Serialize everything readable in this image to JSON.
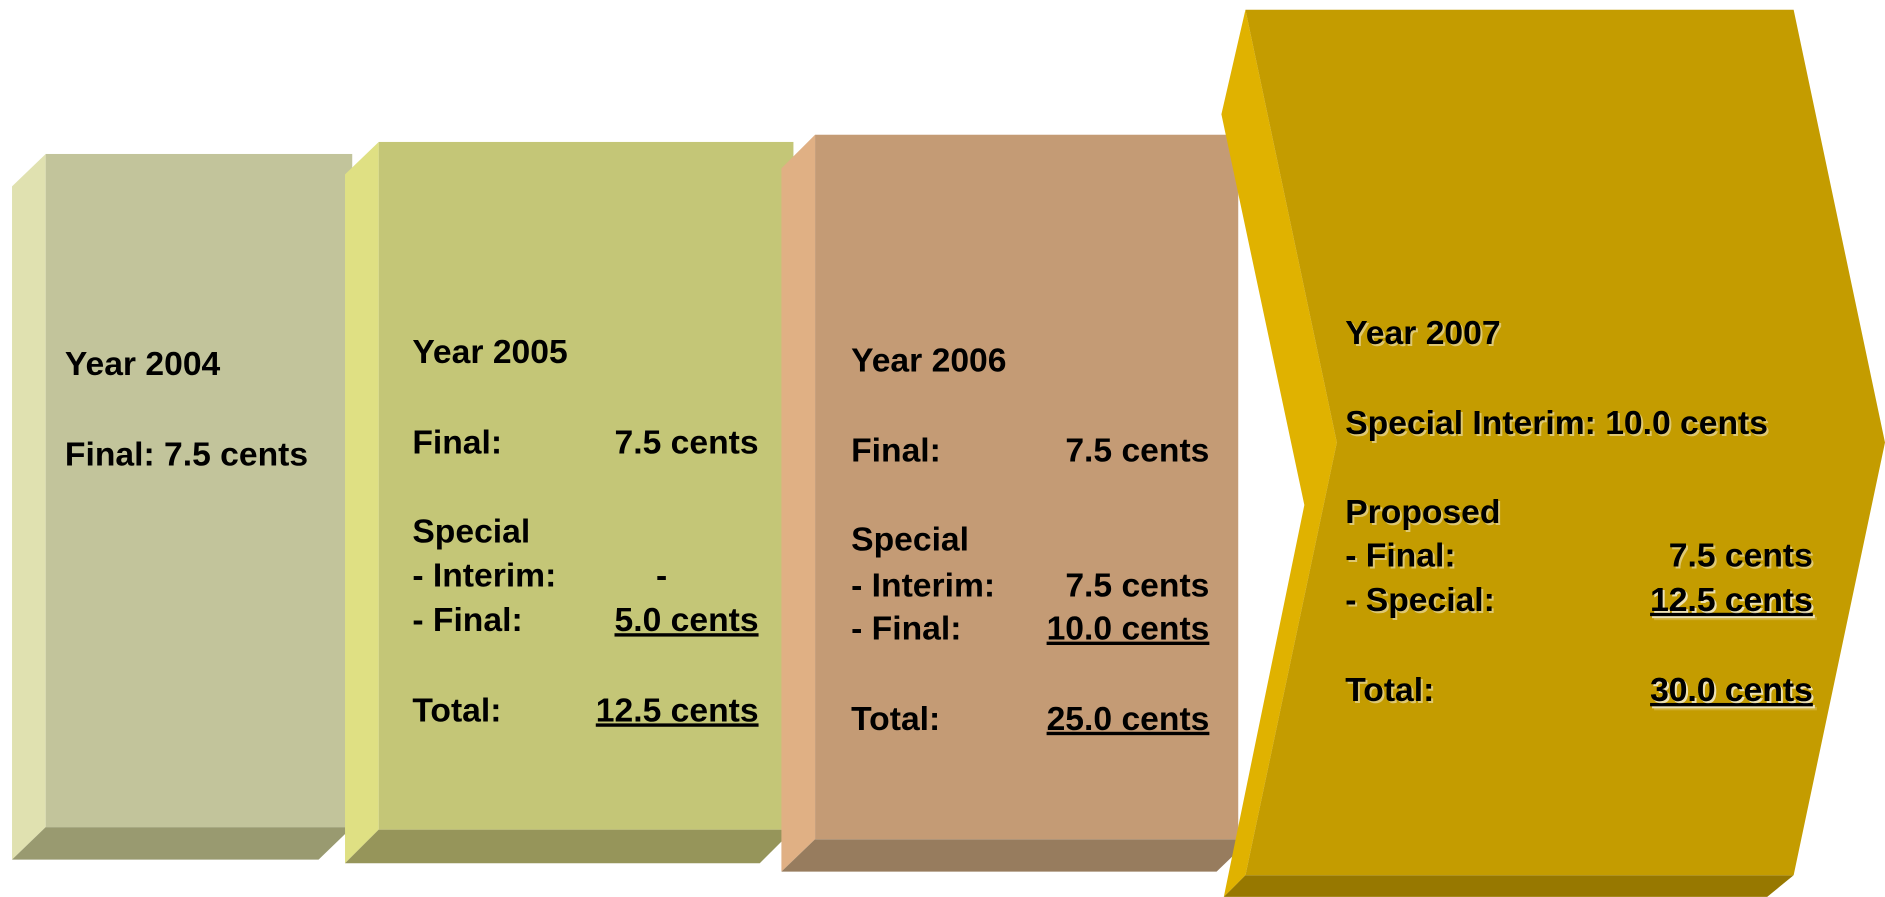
{
  "boxes": [
    {
      "title": "Year 2004",
      "lines": [
        {
          "label": "Final: 7.5 cents"
        }
      ]
    },
    {
      "title": "Year 2005",
      "lines": [
        {
          "label": "Final:",
          "value": "7.5 cents"
        },
        {
          "label": "Special"
        },
        {
          "label": "- Interim:",
          "value": "-"
        },
        {
          "label": "- Final:",
          "value": "5.0 cents",
          "underline": true
        },
        {
          "label": "Total:",
          "value": "12.5 cents",
          "underline": true
        }
      ]
    },
    {
      "title": "Year 2006",
      "lines": [
        {
          "label": "Final:",
          "value": "7.5 cents"
        },
        {
          "label": "Special"
        },
        {
          "label": "- Interim:",
          "value": "7.5 cents"
        },
        {
          "label": "- Final:",
          "value": "10.0 cents",
          "underline": true
        },
        {
          "label": "Total:",
          "value": "25.0 cents",
          "underline": true
        }
      ]
    },
    {
      "title": "Year 2007",
      "lines": [
        {
          "label": "Special Interim: 10.0 cents"
        },
        {
          "label": "Proposed"
        },
        {
          "label": "- Final:",
          "value": "7.5 cents"
        },
        {
          "label": "- Special:",
          "value": "12.5 cents",
          "underline": true
        },
        {
          "label": "Total:",
          "value": "30.0 cents",
          "underline": true
        }
      ]
    }
  ]
}
